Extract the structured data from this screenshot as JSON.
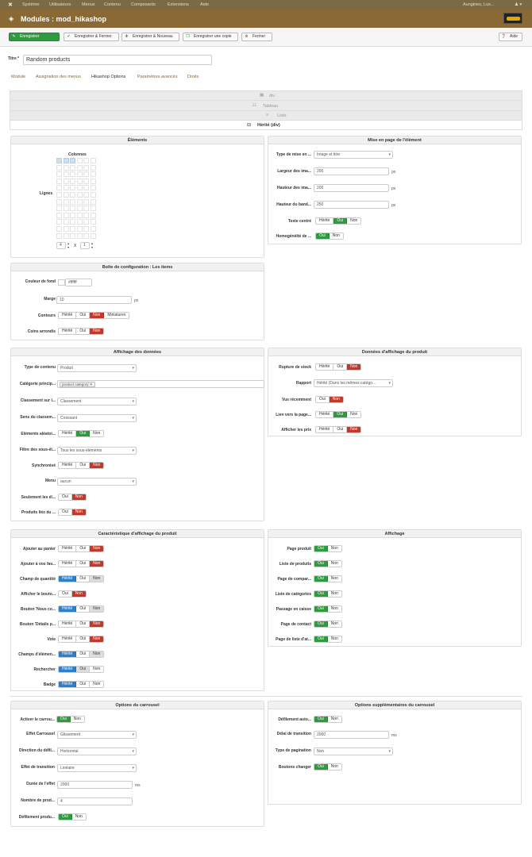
{
  "topnav": {
    "items": [
      "Système",
      "Utilisateurs",
      "Menus",
      "Contenu",
      "Composants",
      "Extensions",
      "Aide"
    ],
    "user": "Aungines, Lux...",
    "user_icon": "↗"
  },
  "header": {
    "title": "Modules : mod_hikashop"
  },
  "toolbar": {
    "save": "Enregistrer",
    "save_close": "Enregistrer & Fermer",
    "save_new": "Enregistrer & Nouveau",
    "save_copy": "Enregistrer une copie",
    "close": "Fermer",
    "help": "Aide"
  },
  "title_field": {
    "label": "Titre *",
    "value": "Random products"
  },
  "tabs": [
    "Module",
    "Assignation des menus",
    "Hikashop Options",
    "Paramètres avancés",
    "Droits"
  ],
  "layout_types": {
    "div": "div",
    "table": "Tableau",
    "list": "Liste",
    "inherited": "Hérité (div)"
  },
  "elements": {
    "title": "Éléments",
    "columns": "Colonnes",
    "rows": "Lignes",
    "rows_value": "4",
    "cols_value": "1",
    "x": "X"
  },
  "item_layout": {
    "title": "Mise en page de l'élément",
    "type_label": "Type de mise en ...",
    "type_value": "Image et titre",
    "width_label": "Largeur des ima...",
    "width_value": "200",
    "height_label": "Hauteur des ima...",
    "height_value": "200",
    "band_label": "Hauteur du band...",
    "band_value": "250",
    "px": "px",
    "centered_label": "Texte centré",
    "homog_label": "Homogénéité de ..."
  },
  "item_box": {
    "title": "Boîte de configuration : Les items",
    "bg_label": "Couleur de fond",
    "bg_value": "#ffffff",
    "margin_label": "Marge",
    "margin_value": "10",
    "px": "px",
    "borders_label": "Contours",
    "rounded_label": "Coins arrondis"
  },
  "data_display": {
    "title": "Affichage des données",
    "content_type_label": "Type de contenu",
    "content_type_value": "Produit",
    "category_label": "Catégorie princip...",
    "category_value": "product category",
    "sort_label": "Classement sur l...",
    "sort_value": "Classement",
    "sort_dir_label": "Sens du classem...",
    "sort_dir_value": "Croissant",
    "random_label": "Éléments aléatoi...",
    "filter_label": "Filtre des sous-él...",
    "filter_value": "Tous les sous-éléments",
    "sync_label": "Synchronisé",
    "menu_label": "Menu",
    "menu_value": "aucun",
    "only_label": "Seulement les él...",
    "linked_label": "Produits liés du ..."
  },
  "product_data": {
    "title": "Données d'affichage du produit",
    "stock_label": "Rupture de stock",
    "report_label": "Rapport",
    "report_value": "Hérité (Dans les mêmes catégo...",
    "seen_label": "Vus récemment",
    "link_label": "Lien vers la page...",
    "price_label": "Afficher les prix"
  },
  "characteristics": {
    "title": "Caractéristique d'affichage du produit",
    "cart_label": "Ajouter au panier",
    "wishlist_label": "Ajouter à vos fav...",
    "qty_label": "Champ de quantité",
    "show_btn_label": "Afficher le bouto...",
    "contact_label": "Bouton 'Nous co...",
    "details_label": "Bouton 'Détails p...",
    "vote_label": "Vote",
    "fields_label": "Champs d'élémen...",
    "search_label": "Rechercher",
    "badge_label": "Badge"
  },
  "display": {
    "title": "Affichage",
    "product_page": "Page produit",
    "product_list": "Liste de produits",
    "compare_page": "Page de compar...",
    "category_list": "Liste de catégories",
    "checkout": "Passage en caisse",
    "contact_page": "Page de contact",
    "wishlist_page": "Page de liste d'at..."
  },
  "carousel": {
    "title": "Options du carrousel",
    "enable_label": "Activer le carrou...",
    "effect_label": "Effet Carrousel",
    "effect_value": "Glissement",
    "direction_label": "Direction du défil...",
    "direction_value": "Horizontal",
    "transition_label": "Effet de transition",
    "transition_value": "Linéaire",
    "duration_label": "Durée de l'effet",
    "duration_value": "2000",
    "ms": "ms",
    "count_label": "Nombre de prod...",
    "count_value": "4",
    "scroll_label": "Défilement produ..."
  },
  "carousel_extra": {
    "title": "Options supplémentaires du carrousel",
    "auto_label": "Défilement auto...",
    "delay_label": "Délai de transition",
    "delay_value": "2000",
    "ms": "ms",
    "pagination_label": "Type de pagination",
    "pagination_value": "Non",
    "change_label": "Boutons changer"
  },
  "opts": {
    "inherited": "Hérité",
    "yes": "Oui",
    "no": "Non",
    "thumbnails": "Miniatures"
  },
  "colors": {
    "topnav": "#7a6b45",
    "header": "#8b6934",
    "accent_green": "#2f9a3f",
    "accent_red": "#c0392b",
    "accent_blue": "#2f7fc8"
  }
}
